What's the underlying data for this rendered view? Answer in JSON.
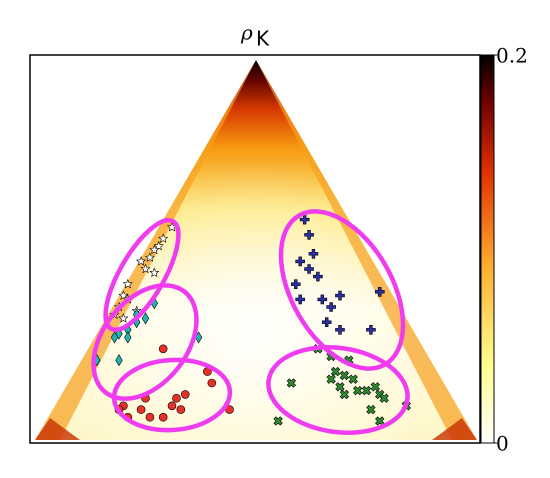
{
  "chart_data": {
    "type": "scatter",
    "title": {
      "symbol": "ρ",
      "subscript": "K"
    },
    "xlim": [
      0,
      1
    ],
    "ylim": [
      0,
      1
    ],
    "colorbar": {
      "clim": [
        0,
        0.2
      ],
      "ticks": [
        0,
        0.2
      ]
    },
    "series": [
      {
        "marker": "star",
        "color": "#ffffff",
        "x": [
          0.31,
          0.29,
          0.28,
          0.27,
          0.26,
          0.25,
          0.27,
          0.24,
          0.21,
          0.2,
          0.21,
          0.19,
          0.23,
          0.18,
          0.2
        ],
        "y": [
          0.56,
          0.53,
          0.51,
          0.5,
          0.48,
          0.45,
          0.44,
          0.47,
          0.41,
          0.38,
          0.37,
          0.35,
          0.34,
          0.33,
          0.32
        ]
      },
      {
        "marker": "diamond",
        "color": "#1fb5b5",
        "x": [
          0.27,
          0.25,
          0.23,
          0.21,
          0.21,
          0.19,
          0.18,
          0.23,
          0.14,
          0.19,
          0.37
        ],
        "y": [
          0.36,
          0.32,
          0.31,
          0.29,
          0.27,
          0.28,
          0.27,
          0.33,
          0.21,
          0.21,
          0.27
        ]
      },
      {
        "marker": "circle",
        "color": "#e8302a",
        "x": [
          0.29,
          0.39,
          0.4,
          0.34,
          0.32,
          0.31,
          0.33,
          0.25,
          0.24,
          0.21,
          0.2,
          0.29,
          0.26,
          0.44,
          0.19
        ],
        "y": [
          0.24,
          0.18,
          0.15,
          0.12,
          0.11,
          0.09,
          0.08,
          0.11,
          0.08,
          0.06,
          0.09,
          0.06,
          0.06,
          0.08,
          0.08
        ]
      },
      {
        "marker": "plus",
        "color": "#2a2fa8",
        "x": [
          0.61,
          0.62,
          0.63,
          0.6,
          0.62,
          0.64,
          0.59,
          0.69,
          0.65,
          0.67,
          0.6,
          0.66,
          0.69,
          0.76,
          0.78
        ],
        "y": [
          0.58,
          0.54,
          0.49,
          0.47,
          0.45,
          0.43,
          0.41,
          0.38,
          0.37,
          0.35,
          0.37,
          0.31,
          0.29,
          0.29,
          0.39
        ]
      },
      {
        "marker": "cross",
        "color": "#2f8a2f",
        "x": [
          0.64,
          0.67,
          0.71,
          0.58,
          0.68,
          0.7,
          0.69,
          0.72,
          0.67,
          0.73,
          0.7,
          0.75,
          0.77,
          0.78,
          0.79,
          0.76,
          0.78,
          0.84,
          0.55
        ],
        "y": [
          0.24,
          0.22,
          0.21,
          0.15,
          0.18,
          0.17,
          0.14,
          0.16,
          0.16,
          0.13,
          0.12,
          0.13,
          0.14,
          0.12,
          0.11,
          0.08,
          0.05,
          0.09,
          0.05
        ]
      }
    ]
  }
}
